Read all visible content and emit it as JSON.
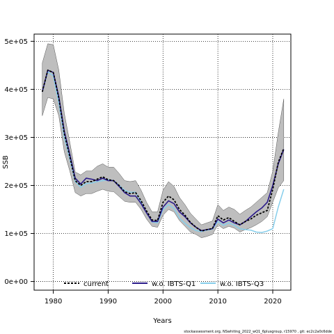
{
  "chart_data": {
    "type": "line",
    "xlabel": "Years",
    "ylabel": "SSB",
    "xlim": [
      1976.5,
      2023.3
    ],
    "ylim": [
      -18000,
      515000
    ],
    "x_ticks": [
      1980,
      1990,
      2000,
      2010,
      2020
    ],
    "x_tick_labels": [
      "1980",
      "1990",
      "2000",
      "2010",
      "2020"
    ],
    "y_ticks": [
      0,
      100000,
      200000,
      300000,
      400000,
      500000
    ],
    "y_tick_labels": [
      "0e+00",
      "1e+05",
      "2e+05",
      "3e+05",
      "4e+05",
      "5e+05"
    ],
    "grid": true,
    "legend_position": "bottom",
    "colors": {
      "band": "#bebebe",
      "current": "#000000",
      "wo_q1": "#2a1a8a",
      "wo_q3": "#87ceeb"
    },
    "band": {
      "x": [
        1978,
        1979,
        1980,
        1981,
        1982,
        1983,
        1984,
        1985,
        1986,
        1987,
        1988,
        1989,
        1990,
        1991,
        1992,
        1993,
        1994,
        1995,
        1996,
        1997,
        1998,
        1999,
        2000,
        2001,
        2002,
        2003,
        2004,
        2005,
        2006,
        2007,
        2008,
        2009,
        2010,
        2011,
        2012,
        2013,
        2014,
        2015,
        2016,
        2017,
        2018,
        2019,
        2020,
        2021,
        2022
      ],
      "upper": [
        455000,
        495000,
        493000,
        440000,
        350000,
        290000,
        228000,
        222000,
        230000,
        230000,
        240000,
        245000,
        238000,
        238000,
        225000,
        210000,
        208000,
        210000,
        190000,
        165000,
        145000,
        145000,
        190000,
        208000,
        198000,
        175000,
        160000,
        142000,
        130000,
        118000,
        122000,
        126000,
        160000,
        148000,
        155000,
        150000,
        140000,
        148000,
        155000,
        165000,
        175000,
        185000,
        230000,
        310000,
        380000
      ],
      "lower": [
        345000,
        383000,
        380000,
        345000,
        270000,
        230000,
        185000,
        178000,
        183000,
        183000,
        188000,
        192000,
        188000,
        187000,
        177000,
        167000,
        165000,
        165000,
        150000,
        130000,
        115000,
        113000,
        138000,
        150000,
        145000,
        127000,
        115000,
        103000,
        98000,
        91000,
        94000,
        98000,
        118000,
        110000,
        115000,
        111000,
        103000,
        108000,
        112000,
        118000,
        125000,
        135000,
        165000,
        195000,
        210000
      ]
    },
    "series": [
      {
        "name": "current",
        "x": [
          1978,
          1979,
          1980,
          1981,
          1982,
          1983,
          1984,
          1985,
          1986,
          1987,
          1988,
          1989,
          1990,
          1991,
          1992,
          1993,
          1994,
          1995,
          1996,
          1997,
          1998,
          1999,
          2000,
          2001,
          2002,
          2003,
          2004,
          2005,
          2006,
          2007,
          2008,
          2009,
          2010,
          2011,
          2012,
          2013,
          2014,
          2015,
          2016,
          2017,
          2018,
          2019,
          2020,
          2021,
          2022
        ],
        "values": [
          395000,
          440000,
          435000,
          382000,
          308000,
          260000,
          210000,
          200000,
          208000,
          208000,
          213000,
          218000,
          212000,
          210000,
          200000,
          187000,
          183000,
          185000,
          168000,
          147000,
          128000,
          127000,
          165000,
          178000,
          170000,
          150000,
          138000,
          123000,
          113000,
          105000,
          108000,
          110000,
          137000,
          128000,
          133000,
          125000,
          118000,
          125000,
          130000,
          138000,
          143000,
          148000,
          192000,
          248000,
          277000
        ]
      },
      {
        "name": "w.o. IBTS-Q1",
        "x": [
          1978,
          1979,
          1980,
          1981,
          1982,
          1983,
          1984,
          1985,
          1986,
          1987,
          1988,
          1989,
          1990,
          1991,
          1992,
          1993,
          1994,
          1995,
          1996,
          1997,
          1998,
          1999,
          2000,
          2001,
          2002,
          2003,
          2004,
          2005,
          2006,
          2007,
          2008,
          2009,
          2010,
          2011,
          2012,
          2013,
          2014,
          2015,
          2016,
          2017,
          2018,
          2019,
          2020,
          2021,
          2022
        ],
        "values": [
          395000,
          440000,
          435000,
          385000,
          313000,
          265000,
          215000,
          203000,
          215000,
          213000,
          210000,
          215000,
          210000,
          210000,
          198000,
          185000,
          178000,
          178000,
          162000,
          143000,
          125000,
          125000,
          155000,
          168000,
          162000,
          145000,
          135000,
          122000,
          113000,
          106000,
          108000,
          110000,
          130000,
          122000,
          128000,
          122000,
          118000,
          125000,
          135000,
          145000,
          153000,
          165000,
          200000,
          245000,
          275000
        ]
      },
      {
        "name": "w.o. IBTS-Q3",
        "x": [
          1978,
          1979,
          1980,
          1981,
          1982,
          1983,
          1984,
          1985,
          1986,
          1987,
          1988,
          1989,
          1990,
          1991,
          1992,
          1993,
          1994,
          1995,
          1996,
          1997,
          1998,
          1999,
          2000,
          2001,
          2002,
          2003,
          2004,
          2005,
          2006,
          2007,
          2008,
          2009,
          2010,
          2011,
          2012,
          2013,
          2014,
          2015,
          2016,
          2017,
          2018,
          2019,
          2020,
          2021,
          2022
        ],
        "values": [
          395000,
          437000,
          428000,
          372000,
          300000,
          255000,
          208000,
          196000,
          204000,
          205000,
          208000,
          210000,
          212000,
          210000,
          200000,
          190000,
          186000,
          186000,
          165000,
          143000,
          124000,
          122000,
          150000,
          160000,
          152000,
          132000,
          121000,
          112000,
          106000,
          104000,
          107000,
          109000,
          125000,
          117000,
          122000,
          117000,
          110000,
          108000,
          107000,
          103000,
          102000,
          105000,
          110000,
          155000,
          192000
        ]
      }
    ],
    "footnote": "stockassessment.org, NSwhiting_2022_wQ1_6plusgroup, r15970 , git: ec2c2a0c6dde"
  }
}
